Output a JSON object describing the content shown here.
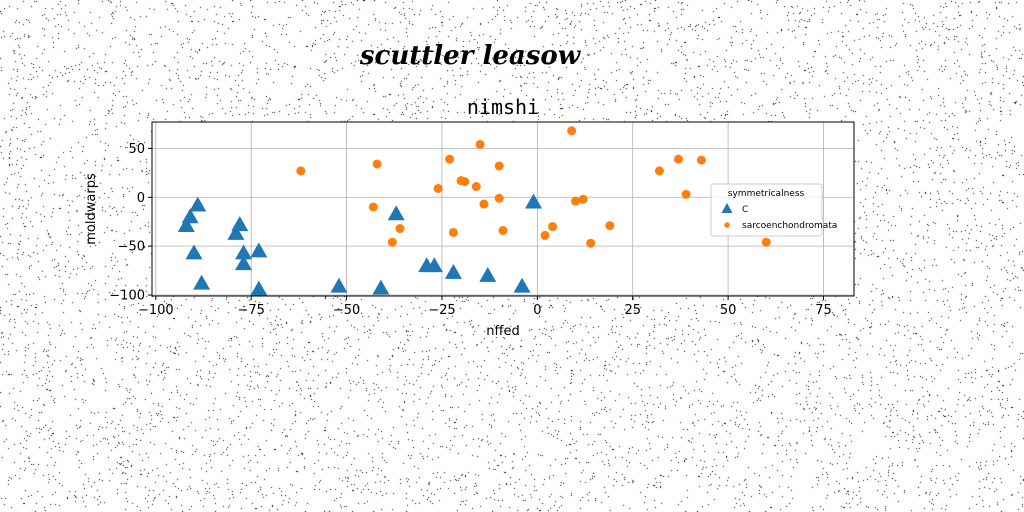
{
  "chart_data": {
    "type": "scatter",
    "suptitle": "scuttler leasow",
    "title": "nimshi",
    "xlabel": "nffed",
    "ylabel": "moldwarps",
    "xlim": [
      -101,
      83
    ],
    "ylim": [
      -101,
      77
    ],
    "xticks": [
      -100,
      -75,
      -50,
      -25,
      0,
      25,
      50,
      75
    ],
    "yticks": [
      -100,
      -50,
      0,
      50
    ],
    "grid": true,
    "legend": {
      "title": "symmetricalness",
      "placement": "right"
    },
    "colors": {
      "C": "#1f77b4",
      "sarcoenchondromata": "#ff7f0e"
    },
    "series": [
      {
        "name": "C",
        "marker": "triangle",
        "x": [
          -89,
          -91,
          -92,
          -90,
          -88,
          -78,
          -79,
          -77,
          -77,
          -73,
          -73,
          -52,
          -41,
          -37,
          -29,
          -27,
          -22,
          -13,
          -4,
          -1
        ],
        "y": [
          -8,
          -20,
          -29,
          -57,
          -88,
          -28,
          -37,
          -57,
          -68,
          -55,
          -94,
          -91,
          -93,
          -17,
          -70,
          -70,
          -77,
          -80,
          -91,
          -5
        ]
      },
      {
        "name": "sarcoenchondromata",
        "marker": "circle",
        "x": [
          -62,
          -42,
          -43,
          -38,
          -36,
          -26,
          -23,
          -22,
          -20,
          -19,
          -16,
          -15,
          -14,
          -10,
          -10,
          -9,
          2,
          4,
          9,
          10,
          12,
          14,
          19,
          32,
          37,
          39,
          43,
          60
        ],
        "y": [
          27,
          34,
          -10,
          -46,
          -32,
          9,
          39,
          -36,
          17,
          16,
          11,
          54,
          -7,
          32,
          -1,
          -34,
          -39,
          -30,
          68,
          -4,
          -2,
          -47,
          -29,
          27,
          39,
          3,
          38,
          -46
        ]
      }
    ]
  }
}
